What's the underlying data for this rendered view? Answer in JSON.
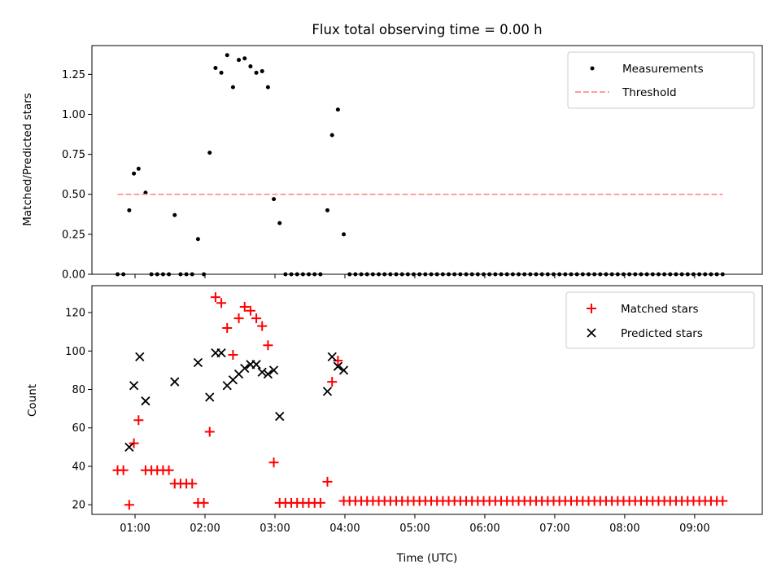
{
  "chart_data": [
    {
      "type": "scatter",
      "title": "Flux total observing time = 0.00 h",
      "xlabel": "",
      "ylabel": "Matched/Predicted stars",
      "xlim": [
        "00:23",
        "09:58"
      ],
      "ylim": [
        0,
        1.43
      ],
      "x_ticks": [
        "01:00",
        "02:00",
        "03:00",
        "04:00",
        "05:00",
        "06:00",
        "07:00",
        "08:00",
        "09:00"
      ],
      "y_ticks": [
        "0.00",
        "0.25",
        "0.50",
        "0.75",
        "1.00",
        "1.25"
      ],
      "legend_position": "top-right",
      "grid": false,
      "series": [
        {
          "name": "Measurements",
          "marker": "dot",
          "color": "#000000",
          "x": [
            "00:45",
            "00:50",
            "00:55",
            "00:59",
            "01:03",
            "01:09",
            "01:14",
            "01:19",
            "01:24",
            "01:29",
            "01:34",
            "01:39",
            "01:44",
            "01:49",
            "01:54",
            "01:59",
            "02:04",
            "02:09",
            "02:14",
            "02:19",
            "02:24",
            "02:29",
            "02:34",
            "02:39",
            "02:44",
            "02:49",
            "02:54",
            "02:59",
            "03:04",
            "03:09",
            "03:14",
            "03:19",
            "03:24",
            "03:29",
            "03:34",
            "03:39",
            "03:45",
            "03:49",
            "03:54",
            "03:59",
            "04:04",
            "04:09",
            "04:14",
            "04:19",
            "04:24",
            "04:29",
            "04:34",
            "04:39",
            "04:44",
            "04:49",
            "04:54",
            "04:59",
            "05:04",
            "05:09",
            "05:14",
            "05:19",
            "05:24",
            "05:29",
            "05:34",
            "05:39",
            "05:44",
            "05:49",
            "05:54",
            "05:59",
            "06:04",
            "06:09",
            "06:14",
            "06:19",
            "06:24",
            "06:29",
            "06:34",
            "06:39",
            "06:44",
            "06:49",
            "06:54",
            "06:59",
            "07:04",
            "07:09",
            "07:14",
            "07:19",
            "07:24",
            "07:29",
            "07:34",
            "07:39",
            "07:44",
            "07:49",
            "07:54",
            "07:59",
            "08:04",
            "08:09",
            "08:14",
            "08:19",
            "08:24",
            "08:29",
            "08:34",
            "08:39",
            "08:44",
            "08:49",
            "08:54",
            "08:59",
            "09:04",
            "09:09",
            "09:14",
            "09:19",
            "09:24"
          ],
          "y": [
            0,
            0,
            0.4,
            0.63,
            0.66,
            0.51,
            0,
            0,
            0,
            0,
            0.37,
            0,
            0,
            0,
            0.22,
            0,
            0.76,
            1.29,
            1.26,
            1.37,
            1.17,
            1.34,
            1.35,
            1.3,
            1.26,
            1.27,
            1.17,
            0.47,
            0.32,
            0,
            0,
            0,
            0,
            0,
            0,
            0,
            0.4,
            0.87,
            1.03,
            0.25,
            0,
            0,
            0,
            0,
            0,
            0,
            0,
            0,
            0,
            0,
            0,
            0,
            0,
            0,
            0,
            0,
            0,
            0,
            0,
            0,
            0,
            0,
            0,
            0,
            0,
            0,
            0,
            0,
            0,
            0,
            0,
            0,
            0,
            0,
            0,
            0,
            0,
            0,
            0,
            0,
            0,
            0,
            0,
            0,
            0,
            0,
            0,
            0,
            0,
            0,
            0,
            0,
            0,
            0,
            0,
            0,
            0,
            0,
            0,
            0,
            0,
            0,
            0,
            0,
            0
          ]
        },
        {
          "name": "Threshold",
          "style": "dashed",
          "color": "#ff7f7f",
          "x": [
            "00:45",
            "09:24"
          ],
          "y": [
            0.5,
            0.5
          ]
        }
      ]
    },
    {
      "type": "scatter",
      "title": "",
      "xlabel": "Time (UTC)",
      "ylabel": "Count",
      "xlim": [
        "00:23",
        "09:58"
      ],
      "ylim": [
        15,
        134
      ],
      "x_ticks": [
        "01:00",
        "02:00",
        "03:00",
        "04:00",
        "05:00",
        "06:00",
        "07:00",
        "08:00",
        "09:00"
      ],
      "y_ticks": [
        "20",
        "40",
        "60",
        "80",
        "100",
        "120"
      ],
      "legend_position": "top-right",
      "grid": false,
      "series": [
        {
          "name": "Matched stars",
          "marker": "plus",
          "color": "#ff0000",
          "x": [
            "00:45",
            "00:50",
            "00:55",
            "00:59",
            "01:03",
            "01:09",
            "01:14",
            "01:19",
            "01:24",
            "01:29",
            "01:34",
            "01:39",
            "01:44",
            "01:49",
            "01:54",
            "01:59",
            "02:04",
            "02:09",
            "02:14",
            "02:19",
            "02:24",
            "02:29",
            "02:34",
            "02:39",
            "02:44",
            "02:49",
            "02:54",
            "02:59",
            "03:04",
            "03:09",
            "03:14",
            "03:19",
            "03:24",
            "03:29",
            "03:34",
            "03:39",
            "03:45",
            "03:49",
            "03:54",
            "03:59",
            "04:04",
            "04:09",
            "04:14",
            "04:19",
            "04:24",
            "04:29",
            "04:34",
            "04:39",
            "04:44",
            "04:49",
            "04:54",
            "04:59",
            "05:04",
            "05:09",
            "05:14",
            "05:19",
            "05:24",
            "05:29",
            "05:34",
            "05:39",
            "05:44",
            "05:49",
            "05:54",
            "05:59",
            "06:04",
            "06:09",
            "06:14",
            "06:19",
            "06:24",
            "06:29",
            "06:34",
            "06:39",
            "06:44",
            "06:49",
            "06:54",
            "06:59",
            "07:04",
            "07:09",
            "07:14",
            "07:19",
            "07:24",
            "07:29",
            "07:34",
            "07:39",
            "07:44",
            "07:49",
            "07:54",
            "07:59",
            "08:04",
            "08:09",
            "08:14",
            "08:19",
            "08:24",
            "08:29",
            "08:34",
            "08:39",
            "08:44",
            "08:49",
            "08:54",
            "08:59",
            "09:04",
            "09:09",
            "09:14",
            "09:19",
            "09:24"
          ],
          "y": [
            38,
            38,
            20,
            52,
            64,
            38,
            38,
            38,
            38,
            38,
            31,
            31,
            31,
            31,
            21,
            21,
            58,
            128,
            125,
            112,
            98,
            117,
            123,
            121,
            117,
            113,
            103,
            42,
            21,
            21,
            21,
            21,
            21,
            21,
            21,
            21,
            32,
            84,
            95,
            22,
            22,
            22,
            22,
            22,
            22,
            22,
            22,
            22,
            22,
            22,
            22,
            22,
            22,
            22,
            22,
            22,
            22,
            22,
            22,
            22,
            22,
            22,
            22,
            22,
            22,
            22,
            22,
            22,
            22,
            22,
            22,
            22,
            22,
            22,
            22,
            22,
            22,
            22,
            22,
            22,
            22,
            22,
            22,
            22,
            22,
            22,
            22,
            22,
            22,
            22,
            22,
            22,
            22,
            22,
            22,
            22,
            22,
            22,
            22,
            22,
            22,
            22,
            22,
            22,
            22
          ]
        },
        {
          "name": "Predicted stars",
          "marker": "x",
          "color": "#000000",
          "x": [
            "00:55",
            "00:59",
            "01:04",
            "01:09",
            "01:34",
            "01:54",
            "02:04",
            "02:09",
            "02:14",
            "02:19",
            "02:24",
            "02:29",
            "02:34",
            "02:39",
            "02:44",
            "02:49",
            "02:54",
            "02:59",
            "03:04",
            "03:45",
            "03:49",
            "03:54",
            "03:59"
          ],
          "y": [
            50,
            82,
            97,
            74,
            84,
            94,
            76,
            99,
            99,
            82,
            85,
            88,
            91,
            93,
            93,
            89,
            88,
            90,
            66,
            79,
            97,
            92,
            90
          ]
        }
      ]
    }
  ]
}
